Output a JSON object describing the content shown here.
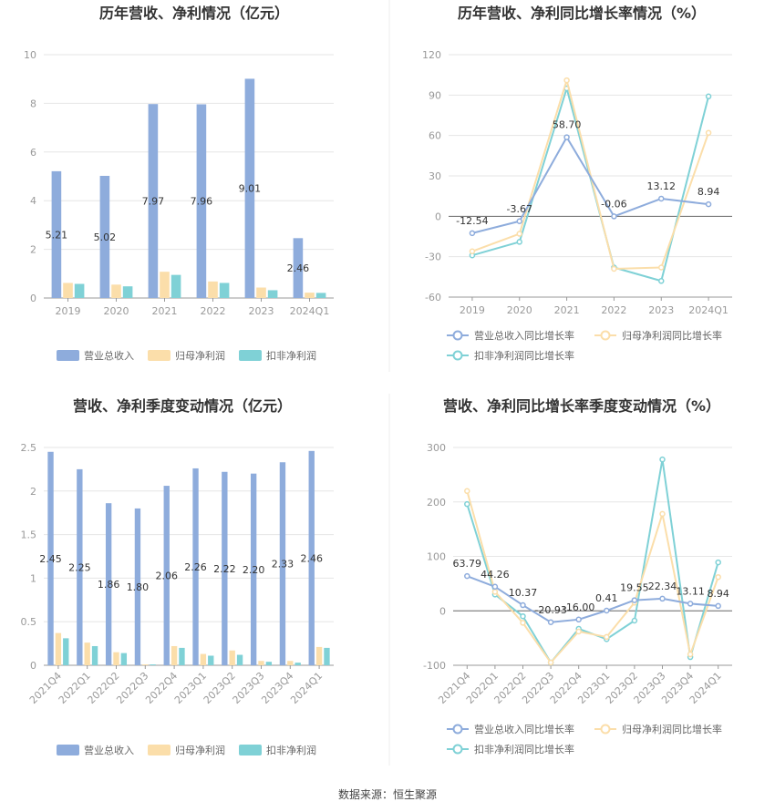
{
  "source": "数据来源：恒生聚源",
  "colors": {
    "revenue": "#8eacdc",
    "net_profit": "#fbdeaa",
    "deducted_profit": "#7fd1d6"
  },
  "chart_data": [
    {
      "id": "annual-bars",
      "type": "bar",
      "title": "历年营收、净利情况（亿元）",
      "categories": [
        "2019",
        "2020",
        "2021",
        "2022",
        "2023",
        "2024Q1"
      ],
      "ylim": [
        0,
        10
      ],
      "yticks": [
        "0",
        "2",
        "4",
        "6",
        "8",
        "10"
      ],
      "grid": true,
      "legend_position": "bottom",
      "series": [
        {
          "name": "营业总收入",
          "values": [
            5.21,
            5.02,
            7.97,
            7.96,
            9.01,
            2.46
          ],
          "labels": [
            "5.21",
            "5.02",
            "7.97",
            "7.96",
            "9.01",
            "2.46"
          ]
        },
        {
          "name": "归母净利润",
          "values": [
            0.62,
            0.55,
            1.08,
            0.68,
            0.43,
            0.22
          ]
        },
        {
          "name": "扣非净利润",
          "values": [
            0.58,
            0.48,
            0.95,
            0.62,
            0.32,
            0.21
          ]
        }
      ]
    },
    {
      "id": "annual-growth",
      "type": "line",
      "title": "历年营收、净利同比增长率情况（%）",
      "categories": [
        "2019",
        "2020",
        "2021",
        "2022",
        "2023",
        "2024Q1"
      ],
      "ylim": [
        -60,
        120
      ],
      "yticks": [
        "-60",
        "-30",
        "0",
        "30",
        "60",
        "90",
        "120"
      ],
      "grid": true,
      "legend_position": "bottom",
      "series": [
        {
          "name": "营业总收入同比增长率",
          "values": [
            -12.54,
            -3.67,
            58.7,
            -0.06,
            13.12,
            8.94
          ],
          "labels": [
            "-12.54",
            "-3.67",
            "58.70",
            "-0.06",
            "13.12",
            "8.94"
          ]
        },
        {
          "name": "归母净利润同比增长率",
          "values": [
            -26,
            -13,
            101,
            -39,
            -38,
            62
          ]
        },
        {
          "name": "扣非净利润同比增长率",
          "values": [
            -29,
            -19,
            95,
            -38,
            -48,
            89
          ]
        }
      ]
    },
    {
      "id": "quarterly-bars",
      "type": "bar",
      "title": "营收、净利季度变动情况（亿元）",
      "categories": [
        "2021Q4",
        "2022Q1",
        "2022Q2",
        "2022Q3",
        "2022Q4",
        "2023Q1",
        "2023Q2",
        "2023Q3",
        "2023Q4",
        "2024Q1"
      ],
      "ylim": [
        0,
        2.5
      ],
      "yticks": [
        "0",
        "0.5",
        "1",
        "1.5",
        "2",
        "2.5"
      ],
      "grid": true,
      "legend_position": "bottom",
      "series": [
        {
          "name": "营业总收入",
          "values": [
            2.45,
            2.25,
            1.86,
            1.8,
            2.06,
            2.26,
            2.22,
            2.2,
            2.33,
            2.46
          ],
          "labels": [
            "2.45",
            "2.25",
            "1.86",
            "1.80",
            "2.06",
            "2.26",
            "2.22",
            "2.20",
            "2.33",
            "2.46"
          ]
        },
        {
          "name": "归母净利润",
          "values": [
            0.37,
            0.26,
            0.15,
            0.01,
            0.22,
            0.13,
            0.17,
            0.05,
            0.05,
            0.21
          ]
        },
        {
          "name": "扣非净利润",
          "values": [
            0.31,
            0.22,
            0.14,
            0.01,
            0.2,
            0.11,
            0.12,
            0.04,
            0.03,
            0.2
          ]
        }
      ]
    },
    {
      "id": "quarterly-growth",
      "type": "line",
      "title": "营收、净利同比增长率季度变动情况（%）",
      "categories": [
        "2021Q4",
        "2022Q1",
        "2022Q2",
        "2022Q3",
        "2022Q4",
        "2023Q1",
        "2023Q2",
        "2023Q3",
        "2023Q4",
        "2024Q1"
      ],
      "ylim": [
        -100,
        300
      ],
      "yticks": [
        "-100",
        "0",
        "100",
        "200",
        "300"
      ],
      "grid": true,
      "legend_position": "bottom",
      "series": [
        {
          "name": "营业总收入同比增长率",
          "values": [
            63.79,
            44.26,
            10.37,
            -20.93,
            -16.0,
            0.41,
            19.55,
            22.34,
            13.11,
            8.94
          ],
          "labels": [
            "63.79",
            "44.26",
            "10.37",
            "-20.93",
            "-16.00",
            "0.41",
            "19.55",
            "22.34",
            "13.11",
            "8.94"
          ]
        },
        {
          "name": "归母净利润同比增长率",
          "values": [
            220,
            35,
            -22,
            -95,
            -38,
            -48,
            15,
            178,
            -80,
            62
          ]
        },
        {
          "name": "扣非净利润同比增长率",
          "values": [
            196,
            30,
            -10,
            -95,
            -33,
            -52,
            -18,
            278,
            -85,
            89
          ]
        }
      ]
    }
  ]
}
